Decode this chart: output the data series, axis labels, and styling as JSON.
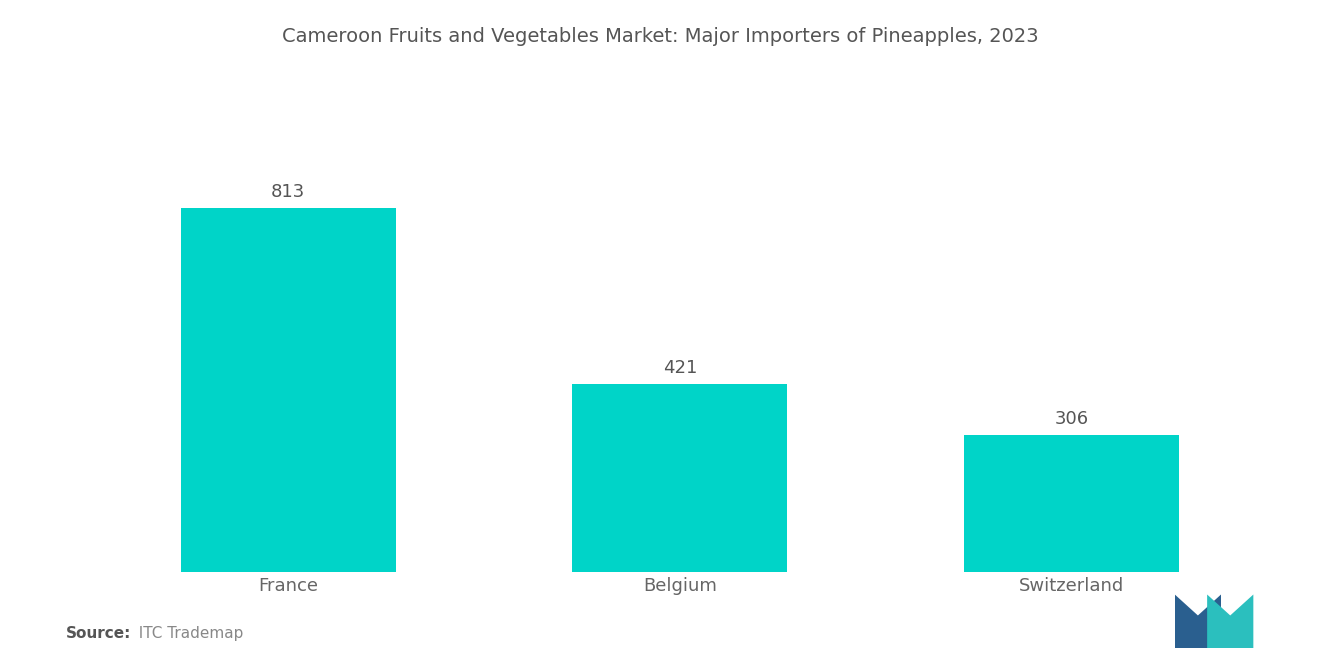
{
  "title": "Cameroon Fruits and Vegetables Market: Major Importers of Pineapples, 2023",
  "categories": [
    "France",
    "Belgium",
    "Switzerland"
  ],
  "values": [
    813,
    421,
    306
  ],
  "bar_color": "#00D4C8",
  "background_color": "#ffffff",
  "title_fontsize": 14,
  "label_fontsize": 13,
  "value_fontsize": 13,
  "source_bold": "Source:",
  "source_normal": "  ITC Trademap",
  "ylim": [
    0,
    1100
  ],
  "bar_width": 0.55,
  "xlim": [
    -0.5,
    2.5
  ]
}
